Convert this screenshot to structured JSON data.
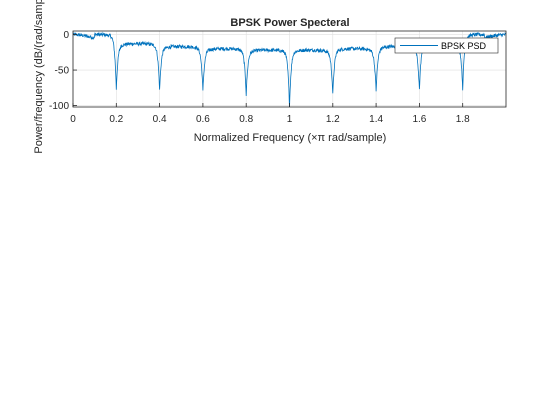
{
  "chart_data": {
    "type": "line",
    "title": "BPSK Power Specteral",
    "xlabel": "Normalized Frequency  (×π rad/sample)",
    "ylabel": "Power/frequency (dB/(rad/sample))",
    "xlim": [
      0,
      2
    ],
    "ylim": [
      -102,
      5
    ],
    "xticks": [
      0,
      0.2,
      0.4,
      0.6,
      0.8,
      1,
      1.2,
      1.4,
      1.6,
      1.8
    ],
    "xtick_labels": [
      "0",
      "0.2",
      "0.4",
      "0.6",
      "0.8",
      "1",
      "1.2",
      "1.4",
      "1.6",
      "1.8"
    ],
    "yticks": [
      0,
      -50,
      -100
    ],
    "ytick_labels": [
      "0",
      "-50",
      "-100"
    ],
    "grid": true,
    "legend_position": "top-right",
    "series": [
      {
        "name": "BPSK PSD",
        "color": "#0072BD",
        "lobe_period": 0.2,
        "lobe_peak_db": [
          0,
          -13,
          -17,
          -20,
          -22,
          -22,
          -20,
          -17,
          -13,
          0
        ],
        "null_depth_db": [
          {
            "x": 0.2,
            "y": -77
          },
          {
            "x": 0.4,
            "y": -79
          },
          {
            "x": 0.6,
            "y": -80
          },
          {
            "x": 0.8,
            "y": -85
          },
          {
            "x": 1.0,
            "y": -102
          },
          {
            "x": 1.2,
            "y": -85
          },
          {
            "x": 1.4,
            "y": -80
          },
          {
            "x": 1.6,
            "y": -79
          },
          {
            "x": 1.8,
            "y": -77
          }
        ],
        "noise_db": 2.5
      }
    ]
  }
}
